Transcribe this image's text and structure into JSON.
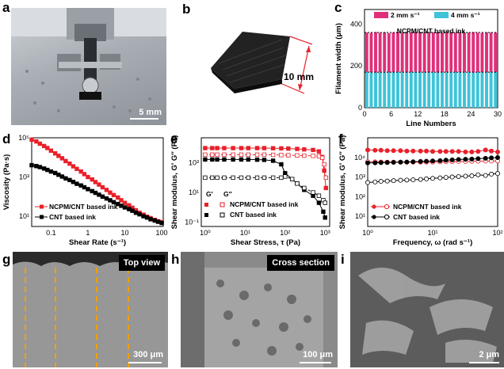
{
  "panels": {
    "a": {
      "label": "a",
      "scale": "5 mm"
    },
    "b": {
      "label": "b",
      "dimension": "10 mm"
    },
    "c": {
      "label": "c"
    },
    "d": {
      "label": "d"
    },
    "e": {
      "label": "e"
    },
    "f": {
      "label": "f"
    },
    "g": {
      "label": "g",
      "tag": "Top view",
      "scale": "300 μm"
    },
    "h": {
      "label": "h",
      "tag": "Cross section",
      "scale": "100 μm"
    },
    "i": {
      "label": "i",
      "scale": "2 μm"
    }
  },
  "colors": {
    "red": "#e8212b",
    "black": "#000000",
    "pink": "#e0307a",
    "cyan": "#3fc3d8"
  },
  "chart_data": [
    {
      "id": "c",
      "type": "bar",
      "title": "NCPM/CNT based ink",
      "xlabel": "Line Numbers",
      "ylabel": "Filament width (μm)",
      "xlim": [
        0,
        30
      ],
      "ylim": [
        0,
        470
      ],
      "xticks": [
        "0",
        "6",
        "12",
        "18",
        "24",
        "30"
      ],
      "yticks": [
        "0",
        "200",
        "400"
      ],
      "legend": [
        "2 mm s⁻¹",
        "4 mm s⁻¹"
      ],
      "series": [
        {
          "name": "2 mm s⁻¹",
          "values": [
            360,
            358,
            362,
            359,
            361,
            357,
            360,
            363,
            359,
            358,
            361,
            360,
            362,
            358,
            359,
            361,
            360,
            357,
            362,
            360,
            359,
            361,
            358,
            360,
            362,
            359,
            358,
            361,
            360,
            359
          ]
        },
        {
          "name": "4 mm s⁻¹",
          "values": [
            172,
            170,
            168,
            171,
            173,
            169,
            170,
            172,
            171,
            168,
            170,
            173,
            171,
            169,
            170,
            172,
            168,
            171,
            170,
            173,
            169,
            171,
            170,
            172,
            168,
            171,
            170,
            169,
            172,
            171
          ]
        }
      ]
    },
    {
      "id": "d",
      "type": "line",
      "xlabel": "Shear Rate (s⁻¹)",
      "ylabel": "Viscosity (Pa·s)",
      "xscale": "log",
      "yscale": "log",
      "xlim": [
        0.03,
        110
      ],
      "ylim": [
        3,
        100000
      ],
      "xticks": [
        "0.1",
        "1",
        "10",
        "100"
      ],
      "yticks": [
        "10¹",
        "10³",
        "10⁵"
      ],
      "series": [
        {
          "name": "NCPM/CNT based ink",
          "x": [
            0.03,
            0.04,
            0.05,
            0.065,
            0.08,
            0.1,
            0.13,
            0.16,
            0.2,
            0.25,
            0.32,
            0.4,
            0.5,
            0.65,
            0.8,
            1,
            1.3,
            1.6,
            2,
            2.5,
            3.2,
            4,
            5,
            6.5,
            8,
            10,
            13,
            16,
            20,
            25,
            32,
            40,
            50,
            65,
            80,
            100
          ],
          "y": [
            80000,
            65000,
            50000,
            38000,
            30000,
            22000,
            16000,
            12000,
            9000,
            6500,
            4800,
            3500,
            2600,
            1900,
            1400,
            1000,
            750,
            550,
            410,
            300,
            220,
            160,
            120,
            90,
            65,
            48,
            36,
            27,
            20,
            15,
            12,
            9.5,
            8,
            6.5,
            5.5,
            5
          ]
        },
        {
          "name": "CNT based ink",
          "x": [
            0.03,
            0.04,
            0.05,
            0.065,
            0.08,
            0.1,
            0.13,
            0.16,
            0.2,
            0.25,
            0.32,
            0.4,
            0.5,
            0.65,
            0.8,
            1,
            1.3,
            1.6,
            2,
            2.5,
            3.2,
            4,
            5,
            6.5,
            8,
            10,
            13,
            16,
            20,
            25,
            32,
            40,
            50,
            65,
            80,
            100
          ],
          "y": [
            4000,
            3600,
            3200,
            2700,
            2300,
            1900,
            1600,
            1300,
            1050,
            850,
            700,
            560,
            450,
            370,
            300,
            240,
            190,
            155,
            125,
            100,
            80,
            65,
            52,
            42,
            34,
            28,
            23,
            19,
            15,
            12.5,
            10,
            8.5,
            7,
            6,
            5.2,
            4.5
          ]
        }
      ]
    },
    {
      "id": "e",
      "type": "line",
      "xlabel": "Shear Stress, τ (Pa)",
      "ylabel": "Shear modulus, G′ G″ (Pa)",
      "xscale": "log",
      "yscale": "log",
      "xlim": [
        0.8,
        1300
      ],
      "ylim": [
        0.05,
        50000
      ],
      "xticks": [
        "10⁰",
        "10¹",
        "10²",
        "10³"
      ],
      "yticks": [
        "10⁻¹",
        "10¹",
        "10³"
      ],
      "legend_header": [
        "G′",
        "G″"
      ],
      "series": [
        {
          "name": "NCPM/CNT based ink G′",
          "x": [
            1,
            1.5,
            2,
            3,
            5,
            8,
            12,
            20,
            30,
            50,
            80,
            120,
            200,
            300,
            500,
            700,
            850,
            950,
            1050
          ],
          "y": [
            10000,
            10000,
            10000,
            10000,
            10000,
            10000,
            10000,
            10000,
            10000,
            9800,
            9600,
            9300,
            8800,
            8200,
            7500,
            6000,
            2500,
            300,
            20
          ]
        },
        {
          "name": "NCPM/CNT based ink G″",
          "x": [
            1,
            1.5,
            2,
            3,
            5,
            8,
            12,
            20,
            30,
            50,
            80,
            120,
            200,
            300,
            500,
            700,
            850,
            950,
            1050
          ],
          "y": [
            3600,
            3600,
            3600,
            3600,
            3600,
            3600,
            3600,
            3600,
            3600,
            3500,
            3400,
            3300,
            3200,
            3100,
            3000,
            2800,
            2200,
            800,
            100
          ]
        },
        {
          "name": "CNT based ink G′",
          "x": [
            1,
            1.5,
            2,
            3,
            5,
            8,
            12,
            20,
            30,
            50,
            80,
            100,
            150,
            200,
            300,
            500,
            700,
            900,
            1000
          ],
          "y": [
            1700,
            1700,
            1700,
            1700,
            1700,
            1700,
            1700,
            1650,
            1600,
            1400,
            800,
            200,
            80,
            40,
            15,
            6,
            2,
            0.5,
            0.2
          ]
        },
        {
          "name": "CNT based ink G″",
          "x": [
            1,
            1.5,
            2,
            3,
            5,
            8,
            12,
            20,
            30,
            50,
            80,
            100,
            150,
            200,
            300,
            500,
            700,
            900,
            1000
          ],
          "y": [
            100,
            100,
            100,
            100,
            100,
            100,
            100,
            100,
            100,
            100,
            100,
            120,
            80,
            40,
            20,
            10,
            6,
            3,
            2
          ]
        }
      ]
    },
    {
      "id": "f",
      "type": "line",
      "xlabel": "Frequency, ω (rad s⁻¹)",
      "ylabel": "Shear modulus, G′ G″ (Pa)",
      "xscale": "log",
      "yscale": "log",
      "xlim": [
        1,
        100
      ],
      "ylim": [
        3,
        100000
      ],
      "xticks": [
        "10⁰",
        "10¹",
        "10²"
      ],
      "yticks": [
        "10¹",
        "10²",
        "10³",
        "10⁴"
      ],
      "series": [
        {
          "name": "NCPM/CNT based ink G′",
          "x": [
            1,
            1.3,
            1.6,
            2,
            2.5,
            3.2,
            4,
            5,
            6.5,
            8,
            10,
            13,
            16,
            20,
            25,
            32,
            40,
            50,
            65,
            80,
            100
          ],
          "y": [
            24000,
            23000,
            23000,
            22000,
            22000,
            22000,
            21000,
            21000,
            21000,
            21000,
            20000,
            20000,
            20000,
            20000,
            20000,
            19000,
            19000,
            20000,
            24000,
            21000,
            19000
          ]
        },
        {
          "name": "NCPM/CNT based ink G″",
          "x": [
            1,
            1.3,
            1.6,
            2,
            2.5,
            3.2,
            4,
            5,
            6.5,
            8,
            10,
            13,
            16,
            20,
            25,
            32,
            40,
            50,
            65,
            80,
            100
          ],
          "y": [
            6000,
            5900,
            5800,
            5700,
            5700,
            5700,
            5700,
            5700,
            5700,
            5800,
            5800,
            5900,
            6000,
            6100,
            6200,
            6200,
            6300,
            6400,
            6500,
            6500,
            6600
          ]
        },
        {
          "name": "CNT based ink G′",
          "x": [
            1,
            1.3,
            1.6,
            2,
            2.5,
            3.2,
            4,
            5,
            6.5,
            8,
            10,
            13,
            16,
            20,
            25,
            32,
            40,
            50,
            65,
            80,
            100
          ],
          "y": [
            5200,
            5300,
            5400,
            5500,
            5600,
            5700,
            5800,
            6000,
            6200,
            6400,
            6600,
            6800,
            7200,
            7500,
            7800,
            8000,
            8200,
            8600,
            9000,
            9400,
            9800
          ]
        },
        {
          "name": "CNT based ink G″",
          "x": [
            1,
            1.3,
            1.6,
            2,
            2.5,
            3.2,
            4,
            5,
            6.5,
            8,
            10,
            13,
            16,
            20,
            25,
            32,
            40,
            50,
            65,
            80,
            100
          ],
          "y": [
            520,
            560,
            600,
            620,
            650,
            680,
            700,
            720,
            750,
            800,
            850,
            900,
            950,
            1000,
            1050,
            1100,
            1150,
            1300,
            1200,
            1400,
            1500
          ]
        }
      ],
      "legend": [
        "NCPM/CNT based ink",
        "CNT based ink"
      ]
    }
  ]
}
